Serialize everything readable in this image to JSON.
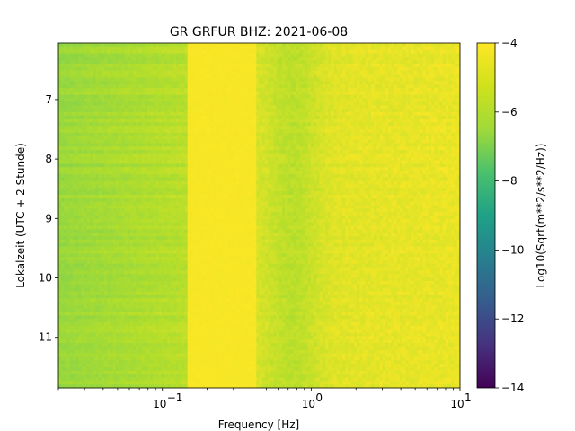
{
  "chart_data": {
    "type": "heatmap",
    "title": "GR GRFUR  BHZ: 2021-06-08",
    "xlabel": "Frequency [Hz]",
    "ylabel": "Lokalzeit (UTC + 2 Stunde)",
    "xscale": "log",
    "xlim": [
      0.02,
      10
    ],
    "ylim": [
      11.85,
      6.05
    ],
    "x_major_ticks": [
      {
        "value": 0.1,
        "label_base": "10",
        "label_exp": "−1"
      },
      {
        "value": 1,
        "label_base": "10",
        "label_exp": "0"
      },
      {
        "value": 10,
        "label_base": "10",
        "label_exp": "1"
      }
    ],
    "y_ticks": [
      7,
      8,
      9,
      10,
      11
    ],
    "y_tick_labels": [
      "7",
      "8",
      "9",
      "10",
      "11"
    ],
    "colorbar": {
      "label": "Log10(Sqrt(m**2/s**2/Hz))",
      "range": [
        -14,
        -4
      ],
      "ticks": [
        -14,
        -12,
        -10,
        -8,
        -6,
        -4
      ],
      "tick_labels": [
        "−14",
        "−12",
        "−10",
        "−8",
        "−6",
        "−4"
      ],
      "colormap": "viridis"
    },
    "dominant_pattern": {
      "microseism_band_hz": [
        0.15,
        0.42
      ],
      "microseism_level": -4.1,
      "low_freq_level_range": [
        -5.8,
        -5.2
      ],
      "high_freq_level_range": [
        -5.2,
        -4.4
      ]
    }
  }
}
